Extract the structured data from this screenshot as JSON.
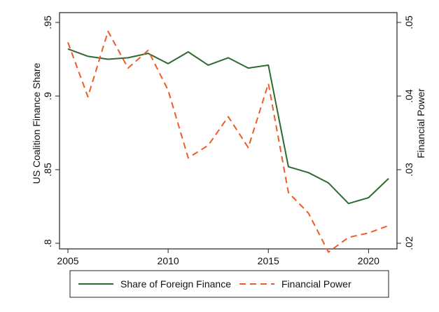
{
  "chart_data": {
    "type": "line",
    "title": "",
    "xlabel": "",
    "ylabel": "US Coalition Finance Share",
    "y2label": "Financial Power",
    "xlim": [
      2005,
      2021
    ],
    "ylim": [
      0.8,
      0.95
    ],
    "y2lim": [
      0.02,
      0.05
    ],
    "x_ticks": [
      2005,
      2010,
      2015,
      2020
    ],
    "x_tick_labels": [
      "2005",
      "2010",
      "2015",
      "2020"
    ],
    "y_ticks": [
      0.8,
      0.85,
      0.9,
      0.95
    ],
    "y_tick_labels": [
      ".8",
      ".85",
      ".9",
      ".95"
    ],
    "y2_ticks": [
      0.02,
      0.03,
      0.04,
      0.05
    ],
    "y2_tick_labels": [
      ".02",
      ".03",
      ".04",
      ".05"
    ],
    "grid": false,
    "legend_position": "bottom",
    "x": [
      2005,
      2006,
      2007,
      2008,
      2009,
      2010,
      2011,
      2012,
      2013,
      2014,
      2015,
      2016,
      2017,
      2018,
      2019,
      2020,
      2021
    ],
    "series": [
      {
        "name": "Share of Foreign Finance",
        "axis": "left",
        "style": "solid",
        "color": "#2e6b2e",
        "values": [
          0.932,
          0.927,
          0.925,
          0.926,
          0.929,
          0.922,
          0.93,
          0.921,
          0.926,
          0.919,
          0.921,
          0.852,
          0.848,
          0.841,
          0.827,
          0.831,
          0.844
        ]
      },
      {
        "name": "Financial Power",
        "axis": "right",
        "style": "dashed",
        "color": "#f05a28",
        "values": [
          0.0473,
          0.0399,
          0.0488,
          0.0438,
          0.0462,
          0.0408,
          0.0316,
          0.0333,
          0.0372,
          0.033,
          0.0417,
          0.0269,
          0.0241,
          0.0188,
          0.0208,
          0.0214,
          0.0224
        ]
      }
    ]
  }
}
